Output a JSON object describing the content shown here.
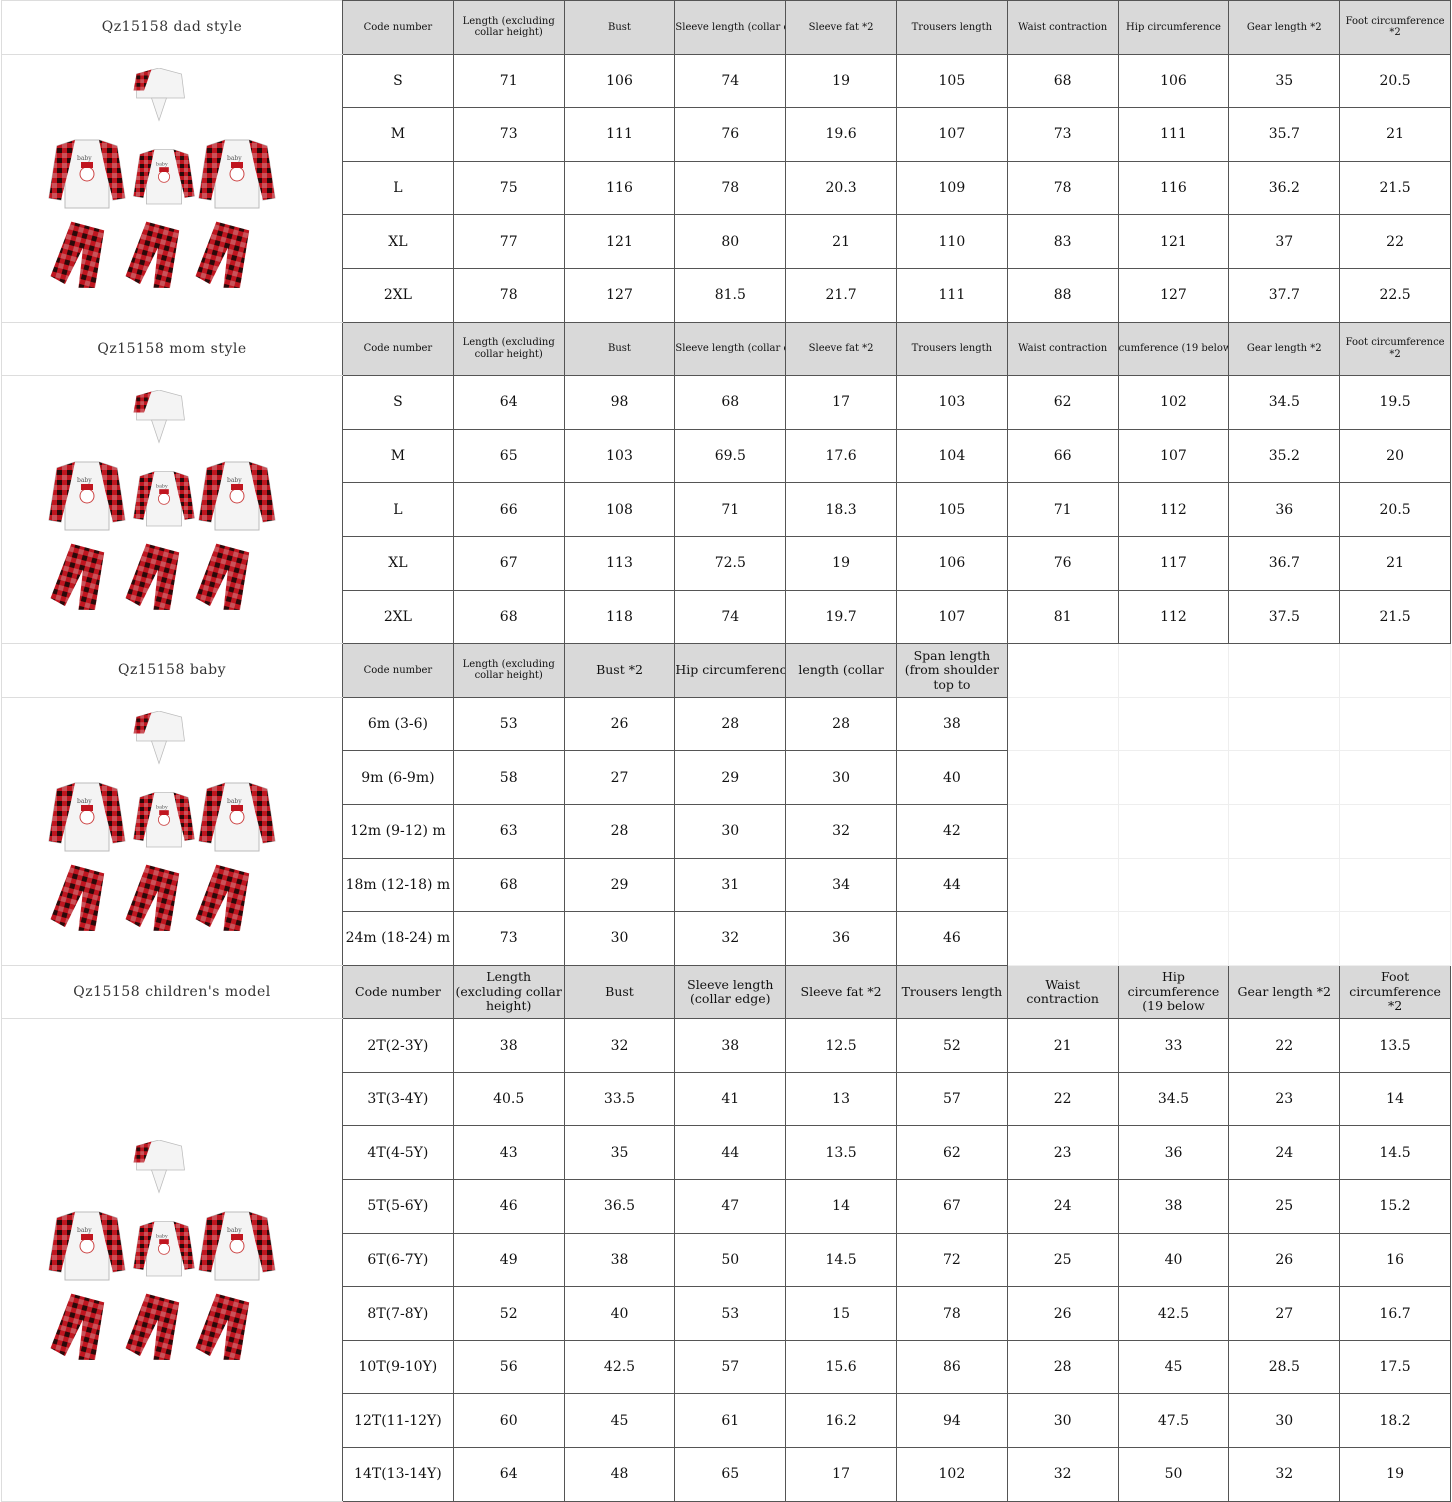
{
  "sections": [
    {
      "title": "Qz15158 dad style",
      "headers": [
        "Code number",
        "Length (excluding collar height)",
        "Bust",
        "Sleeve length (collar edge)",
        "Sleeve fat *2",
        "Trousers length",
        "Waist contraction",
        "Hip circumference",
        "Gear length *2",
        "Foot circumference *2"
      ],
      "rows": [
        [
          "S",
          "71",
          "106",
          "74",
          "19",
          "105",
          "68",
          "106",
          "35",
          "20.5"
        ],
        [
          "M",
          "73",
          "111",
          "76",
          "19.6",
          "107",
          "73",
          "111",
          "35.7",
          "21"
        ],
        [
          "L",
          "75",
          "116",
          "78",
          "20.3",
          "109",
          "78",
          "116",
          "36.2",
          "21.5"
        ],
        [
          "XL",
          "77",
          "121",
          "80",
          "21",
          "110",
          "83",
          "121",
          "37",
          "22"
        ],
        [
          "2XL",
          "78",
          "127",
          "81.5",
          "21.7",
          "111",
          "88",
          "127",
          "37.7",
          "22.5"
        ]
      ]
    },
    {
      "title": "Qz15158 mom style",
      "headers": [
        "Code number",
        "Length (excluding collar height)",
        "Bust",
        "Sleeve length (collar edge)",
        "Sleeve fat *2",
        "Trousers length",
        "Waist contraction",
        "cumference (19 below",
        "Gear length *2",
        "Foot circumference *2"
      ],
      "rows": [
        [
          "S",
          "64",
          "98",
          "68",
          "17",
          "103",
          "62",
          "102",
          "34.5",
          "19.5"
        ],
        [
          "M",
          "65",
          "103",
          "69.5",
          "17.6",
          "104",
          "66",
          "107",
          "35.2",
          "20"
        ],
        [
          "L",
          "66",
          "108",
          "71",
          "18.3",
          "105",
          "71",
          "112",
          "36",
          "20.5"
        ],
        [
          "XL",
          "67",
          "113",
          "72.5",
          "19",
          "106",
          "76",
          "117",
          "36.7",
          "21"
        ],
        [
          "2XL",
          "68",
          "118",
          "74",
          "19.7",
          "107",
          "81",
          "112",
          "37.5",
          "21.5"
        ]
      ]
    },
    {
      "title": "Qz15158 baby",
      "headers": [
        "Code number",
        "Length (excluding collar height)",
        "Bust *2",
        "Hip circumference",
        "length (collar",
        "Span length (from shoulder top to"
      ],
      "rows": [
        [
          "6m (3-6)",
          "53",
          "26",
          "28",
          "28",
          "38"
        ],
        [
          "9m (6-9m)",
          "58",
          "27",
          "29",
          "30",
          "40"
        ],
        [
          "12m (9-12) m",
          "63",
          "28",
          "30",
          "32",
          "42"
        ],
        [
          "18m (12-18) m",
          "68",
          "29",
          "31",
          "34",
          "44"
        ],
        [
          "24m (18-24) m",
          "73",
          "30",
          "32",
          "36",
          "46"
        ]
      ]
    },
    {
      "title": "Qz15158 children's model",
      "headers": [
        "Code number",
        "Length (excluding collar height)",
        "Bust",
        "Sleeve length (collar edge)",
        "Sleeve fat *2",
        "Trousers length",
        "Waist contraction",
        "Hip circumference (19 below",
        "Gear length *2",
        "Foot circumference *2"
      ],
      "rows": [
        [
          "2T(2-3Y)",
          "38",
          "32",
          "38",
          "12.5",
          "52",
          "21",
          "33",
          "22",
          "13.5"
        ],
        [
          "3T(3-4Y)",
          "40.5",
          "33.5",
          "41",
          "13",
          "57",
          "22",
          "34.5",
          "23",
          "14"
        ],
        [
          "4T(4-5Y)",
          "43",
          "35",
          "44",
          "13.5",
          "62",
          "23",
          "36",
          "24",
          "14.5"
        ],
        [
          "5T(5-6Y)",
          "46",
          "36.5",
          "47",
          "14",
          "67",
          "24",
          "38",
          "25",
          "15.2"
        ],
        [
          "6T(6-7Y)",
          "49",
          "38",
          "50",
          "14.5",
          "72",
          "25",
          "40",
          "26",
          "16"
        ],
        [
          "8T(7-8Y)",
          "52",
          "40",
          "53",
          "15",
          "78",
          "26",
          "42.5",
          "27",
          "16.7"
        ],
        [
          "10T(9-10Y)",
          "56",
          "42.5",
          "57",
          "15.6",
          "86",
          "28",
          "45",
          "28.5",
          "17.5"
        ],
        [
          "12T(11-12Y)",
          "60",
          "45",
          "61",
          "16.2",
          "94",
          "30",
          "47.5",
          "30",
          "18.2"
        ],
        [
          "14T(13-14Y)",
          "64",
          "48",
          "65",
          "17",
          "102",
          "32",
          "50",
          "32",
          "19"
        ]
      ]
    }
  ],
  "colors": {
    "header_bg": "#d9d9d9",
    "plaid_red": "#c0151f",
    "plaid_dark": "#2a0a0a"
  }
}
